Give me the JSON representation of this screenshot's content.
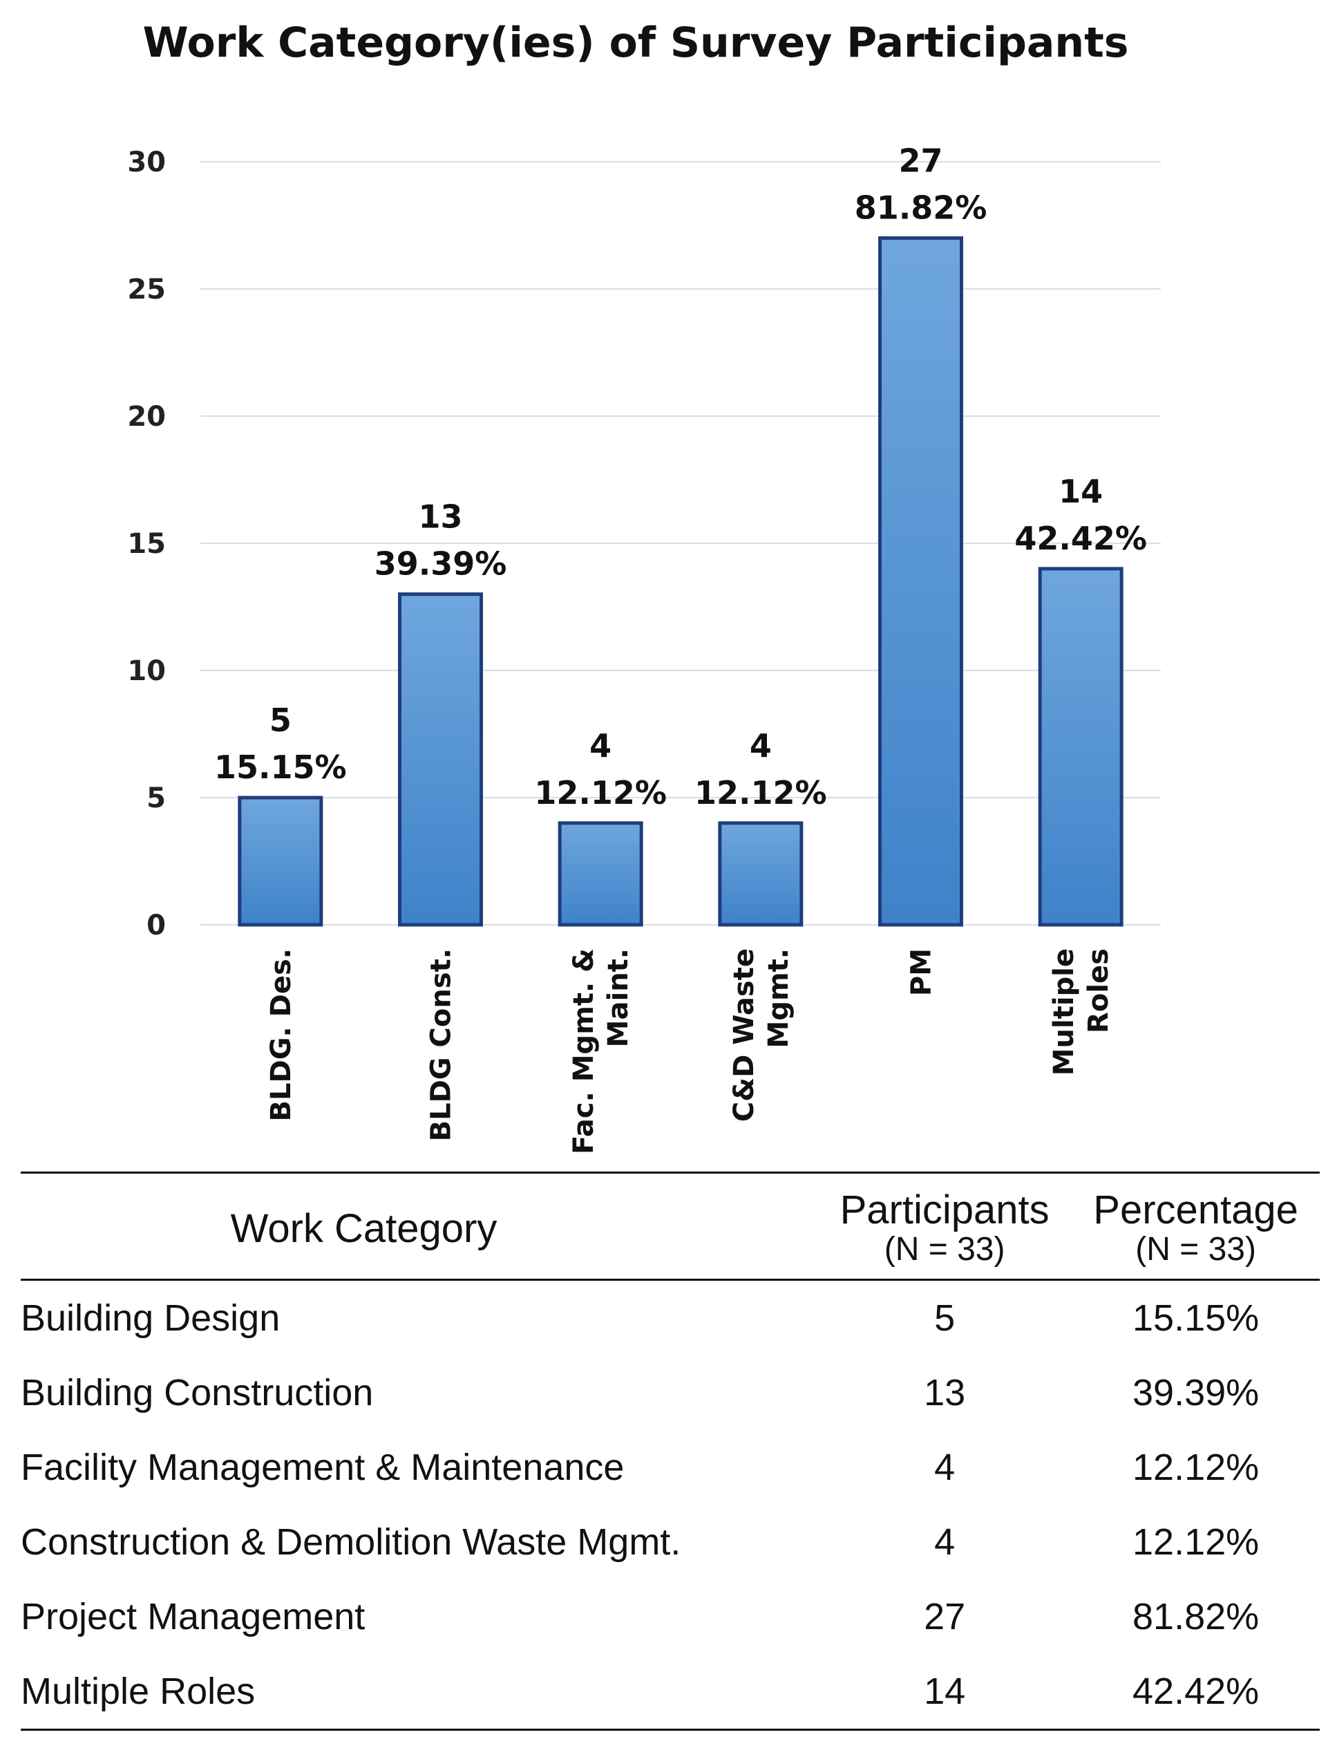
{
  "chart_data": {
    "type": "bar",
    "title": "Work Category(ies) of Survey Participants",
    "categories": [
      [
        "BLDG. Des."
      ],
      [
        "BLDG Const."
      ],
      [
        "Fac. Mgmt. &",
        "Maint."
      ],
      [
        "C&D Waste",
        "Mgmt."
      ],
      [
        "PM"
      ],
      [
        "Multiple",
        "Roles"
      ]
    ],
    "values": [
      5,
      13,
      4,
      4,
      27,
      14
    ],
    "percent_labels": [
      "15.15%",
      "39.39%",
      "12.12%",
      "12.12%",
      "81.82%",
      "42.42%"
    ],
    "ylim": [
      0,
      30
    ],
    "yticks": [
      0,
      5,
      10,
      15,
      20,
      25,
      30
    ],
    "grid": true,
    "xlabel": "",
    "ylabel": "",
    "colors": {
      "bar_top": "#6fa6de",
      "bar_bottom": "#3f82c9",
      "bar_edge": "#1f3e7a"
    }
  },
  "table": {
    "headers": {
      "category": "Work Category",
      "participants": "Participants",
      "participants_sub": "(N = 33)",
      "percentage": "Percentage",
      "percentage_sub": "(N = 33)"
    },
    "rows": [
      {
        "category": "Building Design",
        "participants": "5",
        "percentage": "15.15%"
      },
      {
        "category": "Building Construction",
        "participants": "13",
        "percentage": "39.39%"
      },
      {
        "category": "Facility Management & Maintenance",
        "participants": "4",
        "percentage": "12.12%"
      },
      {
        "category": "Construction & Demolition Waste Mgmt.",
        "participants": "4",
        "percentage": "12.12%"
      },
      {
        "category": "Project Management",
        "participants": "27",
        "percentage": "81.82%"
      },
      {
        "category": "Multiple Roles",
        "participants": "14",
        "percentage": "42.42%"
      }
    ]
  }
}
